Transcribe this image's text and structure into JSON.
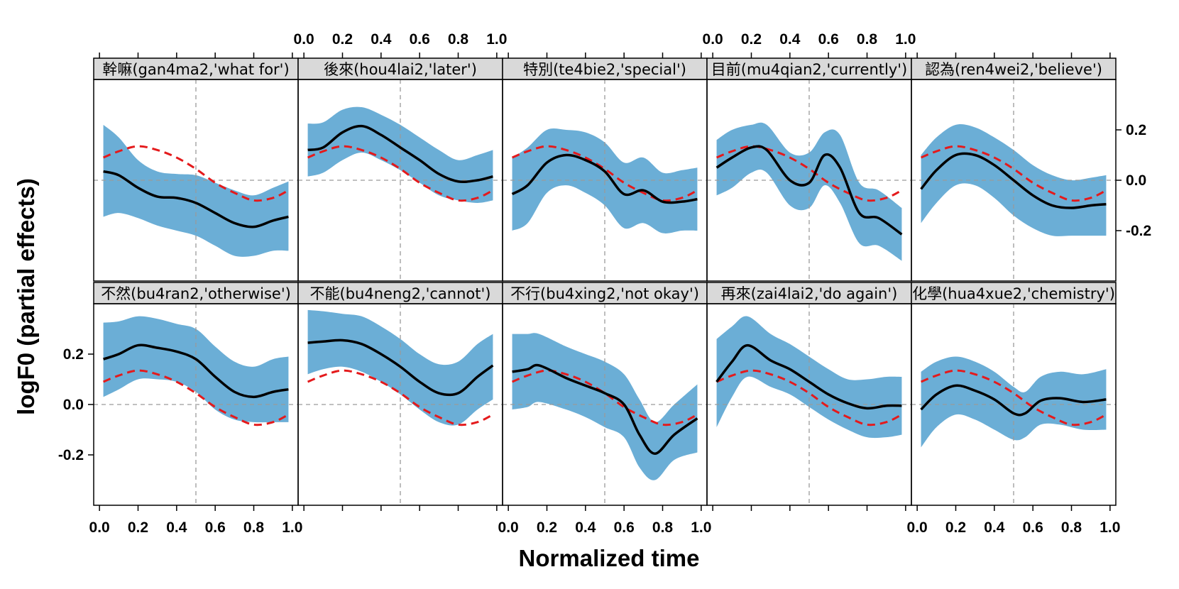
{
  "chart_data": {
    "type": "line",
    "xlabel": "Normalized time",
    "ylabel": "logF0 (partial effects)",
    "xlim": [
      -0.03,
      1.03
    ],
    "ylim": [
      -0.4,
      0.4
    ],
    "x_ticks": [
      "0.0",
      "0.2",
      "0.4",
      "0.6",
      "0.8",
      "1.0"
    ],
    "y_ticks": [
      "-0.2",
      "0.0",
      "0.2"
    ],
    "reference_x": 0.5,
    "reference_y": 0.0,
    "colors": {
      "band": "#6baed6",
      "fit": "#000000",
      "reference": "#e41a1c",
      "strip": "#d9d9d9"
    },
    "reference_curve": {
      "x": [
        0.02,
        0.1,
        0.2,
        0.3,
        0.4,
        0.5,
        0.6,
        0.7,
        0.8,
        0.9,
        0.98
      ],
      "y": [
        0.09,
        0.115,
        0.135,
        0.12,
        0.09,
        0.045,
        -0.01,
        -0.05,
        -0.08,
        -0.07,
        -0.04
      ]
    },
    "panels": [
      {
        "label": "幹嘛(gan4ma2,'what for')",
        "x": [
          0.02,
          0.1,
          0.2,
          0.3,
          0.4,
          0.5,
          0.6,
          0.7,
          0.8,
          0.9,
          0.98
        ],
        "fit": [
          0.035,
          0.02,
          -0.03,
          -0.065,
          -0.07,
          -0.09,
          -0.13,
          -0.17,
          -0.185,
          -0.16,
          -0.145
        ],
        "lower": [
          -0.145,
          -0.13,
          -0.15,
          -0.18,
          -0.2,
          -0.22,
          -0.26,
          -0.3,
          -0.3,
          -0.28,
          -0.28
        ],
        "upper": [
          0.22,
          0.17,
          0.08,
          0.035,
          0.025,
          0.02,
          -0.01,
          -0.04,
          -0.06,
          -0.03,
          -0.005
        ]
      },
      {
        "label": "後來(hou4lai2,'later')",
        "x": [
          0.02,
          0.1,
          0.2,
          0.3,
          0.4,
          0.5,
          0.6,
          0.7,
          0.8,
          0.9,
          0.98
        ],
        "fit": [
          0.12,
          0.13,
          0.19,
          0.215,
          0.18,
          0.13,
          0.08,
          0.025,
          -0.005,
          0.0,
          0.015
        ],
        "lower": [
          0.015,
          0.03,
          0.08,
          0.11,
          0.08,
          0.04,
          -0.01,
          -0.06,
          -0.08,
          -0.09,
          -0.08
        ],
        "upper": [
          0.225,
          0.23,
          0.28,
          0.29,
          0.26,
          0.22,
          0.17,
          0.12,
          0.08,
          0.1,
          0.12
        ]
      },
      {
        "label": "特別(te4bie2,'special')",
        "x": [
          0.02,
          0.1,
          0.2,
          0.3,
          0.4,
          0.5,
          0.6,
          0.7,
          0.8,
          0.9,
          0.98
        ],
        "fit": [
          -0.055,
          -0.02,
          0.07,
          0.1,
          0.08,
          0.035,
          -0.055,
          -0.04,
          -0.085,
          -0.085,
          -0.075
        ],
        "lower": [
          -0.2,
          -0.17,
          -0.05,
          -0.02,
          -0.05,
          -0.1,
          -0.19,
          -0.17,
          -0.21,
          -0.2,
          -0.2
        ],
        "upper": [
          0.09,
          0.13,
          0.2,
          0.2,
          0.19,
          0.15,
          0.07,
          0.09,
          0.03,
          0.04,
          0.05
        ]
      },
      {
        "label": "目前(mu4qian2,'currently')",
        "x": [
          0.02,
          0.1,
          0.2,
          0.28,
          0.4,
          0.5,
          0.58,
          0.66,
          0.76,
          0.86,
          0.98
        ],
        "fit": [
          0.05,
          0.09,
          0.13,
          0.12,
          0.0,
          -0.01,
          0.1,
          0.05,
          -0.13,
          -0.15,
          -0.215
        ],
        "lower": [
          -0.06,
          -0.03,
          0.03,
          0.03,
          -0.1,
          -0.11,
          -0.02,
          -0.09,
          -0.25,
          -0.26,
          -0.32
        ],
        "upper": [
          0.16,
          0.2,
          0.22,
          0.22,
          0.11,
          0.11,
          0.19,
          0.18,
          -0.01,
          -0.04,
          -0.11
        ]
      },
      {
        "label": "認為(ren4wei2,'believe')",
        "x": [
          0.02,
          0.1,
          0.2,
          0.3,
          0.4,
          0.5,
          0.6,
          0.7,
          0.8,
          0.9,
          0.98
        ],
        "fit": [
          -0.035,
          0.04,
          0.1,
          0.1,
          0.06,
          0.0,
          -0.06,
          -0.1,
          -0.11,
          -0.1,
          -0.095
        ],
        "lower": [
          -0.17,
          -0.09,
          -0.02,
          -0.02,
          -0.07,
          -0.14,
          -0.19,
          -0.22,
          -0.22,
          -0.22,
          -0.22
        ],
        "upper": [
          0.1,
          0.17,
          0.22,
          0.21,
          0.17,
          0.12,
          0.06,
          0.02,
          0.0,
          0.01,
          0.02
        ]
      },
      {
        "label": "不然(bu4ran2,'otherwise')",
        "x": [
          0.02,
          0.1,
          0.2,
          0.3,
          0.4,
          0.5,
          0.6,
          0.7,
          0.8,
          0.9,
          0.98
        ],
        "fit": [
          0.18,
          0.2,
          0.235,
          0.225,
          0.21,
          0.18,
          0.11,
          0.05,
          0.03,
          0.05,
          0.06
        ],
        "lower": [
          0.03,
          0.06,
          0.1,
          0.1,
          0.09,
          0.05,
          -0.02,
          -0.06,
          -0.07,
          -0.07,
          -0.07
        ],
        "upper": [
          0.325,
          0.33,
          0.35,
          0.34,
          0.32,
          0.3,
          0.23,
          0.17,
          0.15,
          0.18,
          0.19
        ]
      },
      {
        "label": "不能(bu4neng2,'cannot')",
        "x": [
          0.02,
          0.1,
          0.2,
          0.3,
          0.4,
          0.5,
          0.6,
          0.7,
          0.8,
          0.9,
          0.98
        ],
        "fit": [
          0.245,
          0.25,
          0.255,
          0.24,
          0.2,
          0.15,
          0.09,
          0.045,
          0.045,
          0.11,
          0.155
        ],
        "lower": [
          0.12,
          0.14,
          0.15,
          0.13,
          0.09,
          0.04,
          -0.02,
          -0.07,
          -0.08,
          -0.02,
          0.02
        ],
        "upper": [
          0.375,
          0.37,
          0.36,
          0.35,
          0.31,
          0.26,
          0.2,
          0.16,
          0.17,
          0.24,
          0.28
        ]
      },
      {
        "label": "不行(bu4xing2,'not okay')",
        "x": [
          0.02,
          0.1,
          0.16,
          0.3,
          0.4,
          0.5,
          0.6,
          0.68,
          0.76,
          0.86,
          0.98
        ],
        "fit": [
          0.13,
          0.14,
          0.155,
          0.105,
          0.075,
          0.045,
          0.0,
          -0.12,
          -0.195,
          -0.12,
          -0.055
        ],
        "lower": [
          -0.02,
          -0.01,
          0.01,
          -0.02,
          -0.05,
          -0.09,
          -0.13,
          -0.25,
          -0.3,
          -0.22,
          -0.19
        ],
        "upper": [
          0.28,
          0.28,
          0.28,
          0.23,
          0.2,
          0.17,
          0.12,
          0.02,
          -0.07,
          0.0,
          0.08
        ]
      },
      {
        "label": "再來(zai4lai2,'do again')",
        "x": [
          0.02,
          0.1,
          0.18,
          0.3,
          0.4,
          0.5,
          0.6,
          0.7,
          0.8,
          0.9,
          0.98
        ],
        "fit": [
          0.09,
          0.17,
          0.235,
          0.175,
          0.14,
          0.09,
          0.04,
          0.005,
          -0.015,
          -0.005,
          -0.005
        ],
        "lower": [
          -0.09,
          0.03,
          0.11,
          0.07,
          0.04,
          -0.01,
          -0.06,
          -0.1,
          -0.13,
          -0.13,
          -0.12
        ],
        "upper": [
          0.26,
          0.31,
          0.35,
          0.28,
          0.24,
          0.19,
          0.14,
          0.1,
          0.1,
          0.11,
          0.11
        ]
      },
      {
        "label": "化學(hua4xue2,'chemistry')",
        "x": [
          0.02,
          0.1,
          0.2,
          0.3,
          0.4,
          0.5,
          0.56,
          0.64,
          0.74,
          0.86,
          0.98
        ],
        "fit": [
          -0.02,
          0.04,
          0.075,
          0.055,
          0.02,
          -0.035,
          -0.035,
          0.015,
          0.025,
          0.01,
          0.02
        ],
        "lower": [
          -0.17,
          -0.09,
          -0.04,
          -0.06,
          -0.1,
          -0.14,
          -0.13,
          -0.08,
          -0.08,
          -0.1,
          -0.1
        ],
        "upper": [
          0.13,
          0.17,
          0.19,
          0.17,
          0.13,
          0.07,
          0.05,
          0.11,
          0.13,
          0.12,
          0.14
        ]
      }
    ]
  }
}
